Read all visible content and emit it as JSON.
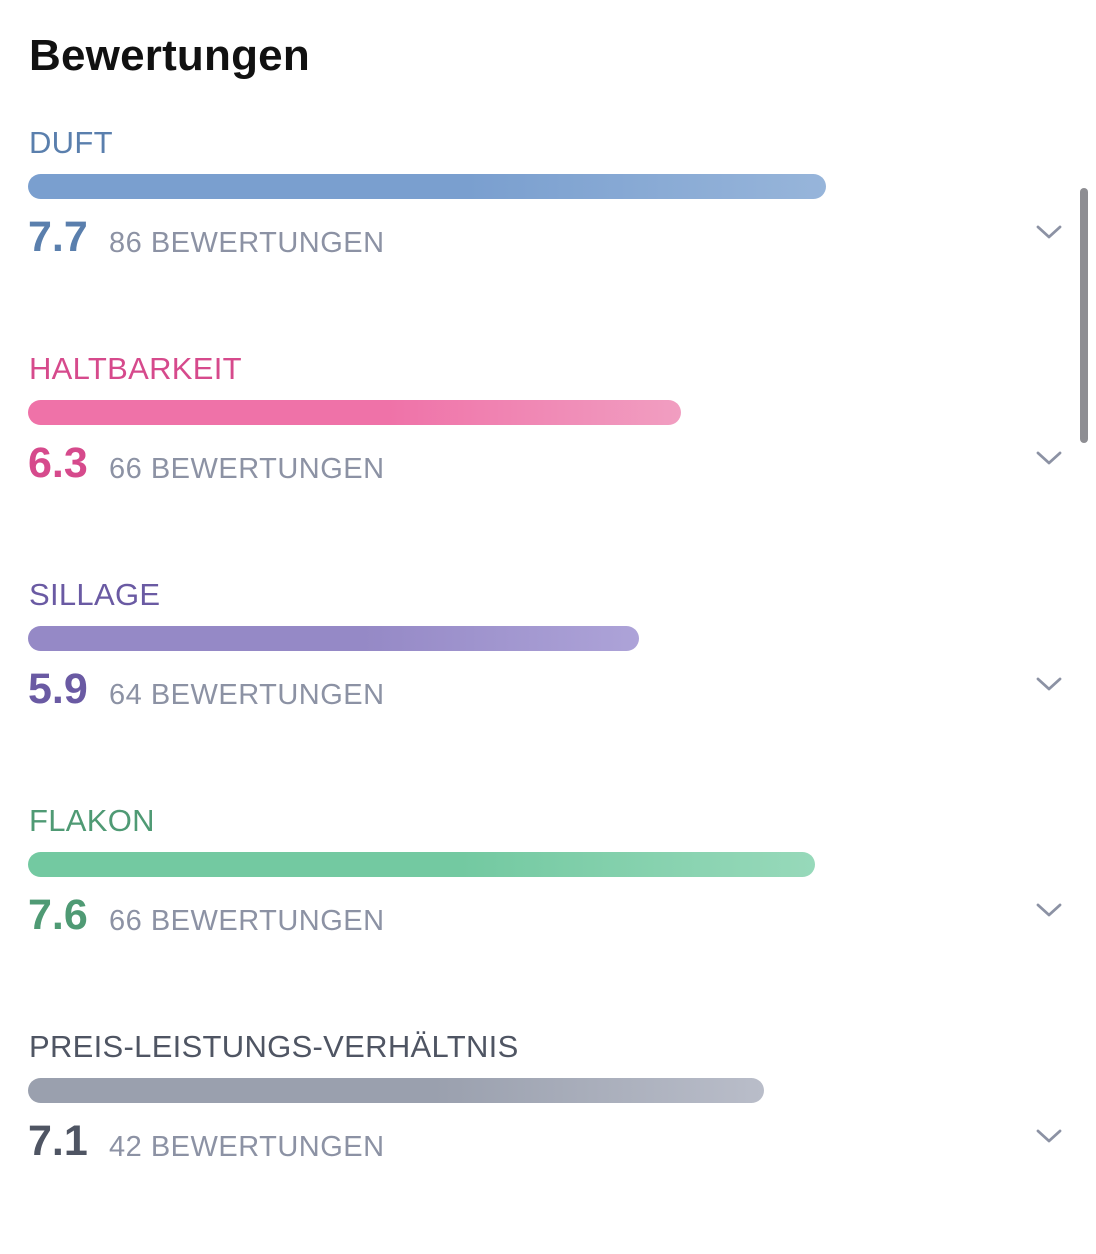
{
  "header": {
    "title": "Bewertungen"
  },
  "scale_max": 10,
  "ratings": [
    {
      "label": "DUFT",
      "score": "7.7",
      "score_value": 7.7,
      "count_label": "86 BEWERTUNGEN",
      "colors": {
        "text": "#5a7fad",
        "bar_start": "#7a9fcf",
        "bar_end": "#97b5da"
      }
    },
    {
      "label": "HALTBARKEIT",
      "score": "6.3",
      "score_value": 6.3,
      "count_label": "66 BEWERTUNGEN",
      "colors": {
        "text": "#d64a8c",
        "bar_start": "#ef72a8",
        "bar_end": "#f19ec1"
      }
    },
    {
      "label": "SILLAGE",
      "score": "5.9",
      "score_value": 5.9,
      "count_label": "64 BEWERTUNGEN",
      "colors": {
        "text": "#6a5aa3",
        "bar_start": "#9589c6",
        "bar_end": "#ada3d8"
      }
    },
    {
      "label": "FLAKON",
      "score": "7.6",
      "score_value": 7.6,
      "count_label": "66 BEWERTUNGEN",
      "colors": {
        "text": "#4f9a74",
        "bar_start": "#73c9a1",
        "bar_end": "#97d9ba"
      }
    },
    {
      "label": "PREIS-LEISTUNGS-VERHÄLTNIS",
      "score": "7.1",
      "score_value": 7.1,
      "count_label": "42 BEWERTUNGEN",
      "colors": {
        "text": "#4f5563",
        "bar_start": "#9aa0ae",
        "bar_end": "#b9bdc9"
      }
    }
  ],
  "icons": {
    "expand": "chevron-down-icon"
  },
  "colors": {
    "title": "#111111",
    "count_text": "#8c92a4",
    "chevron": "#8c92a4",
    "scrollbar": "#8e8e93"
  }
}
